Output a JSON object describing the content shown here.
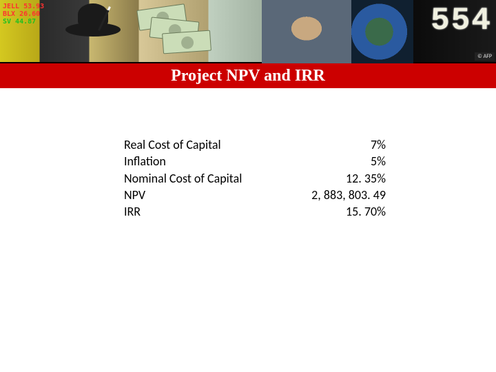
{
  "header": {
    "digital_readout": "554",
    "watermark": "© AFP",
    "ticker_lines": [
      "JELL 53.93",
      "BLX  26.60",
      "SV   44.87"
    ]
  },
  "title": "Project NPV and IRR",
  "table": {
    "rows": [
      {
        "label": "Real Cost of Capital",
        "value": "7%"
      },
      {
        "label": "Inflation",
        "value": "5%"
      },
      {
        "label": "Nominal Cost of Capital",
        "value": "12. 35%"
      },
      {
        "label": "NPV",
        "value": "2, 883, 803. 49"
      },
      {
        "label": "IRR",
        "value": "15. 70%"
      }
    ]
  },
  "colors": {
    "title_bar_bg": "#cc0000",
    "title_text": "#ffffff",
    "body_bg": "#ffffff",
    "text": "#000000"
  },
  "fonts": {
    "title_family": "Times New Roman",
    "title_size_pt": 18,
    "body_family": "Calibri",
    "body_size_pt": 14
  }
}
